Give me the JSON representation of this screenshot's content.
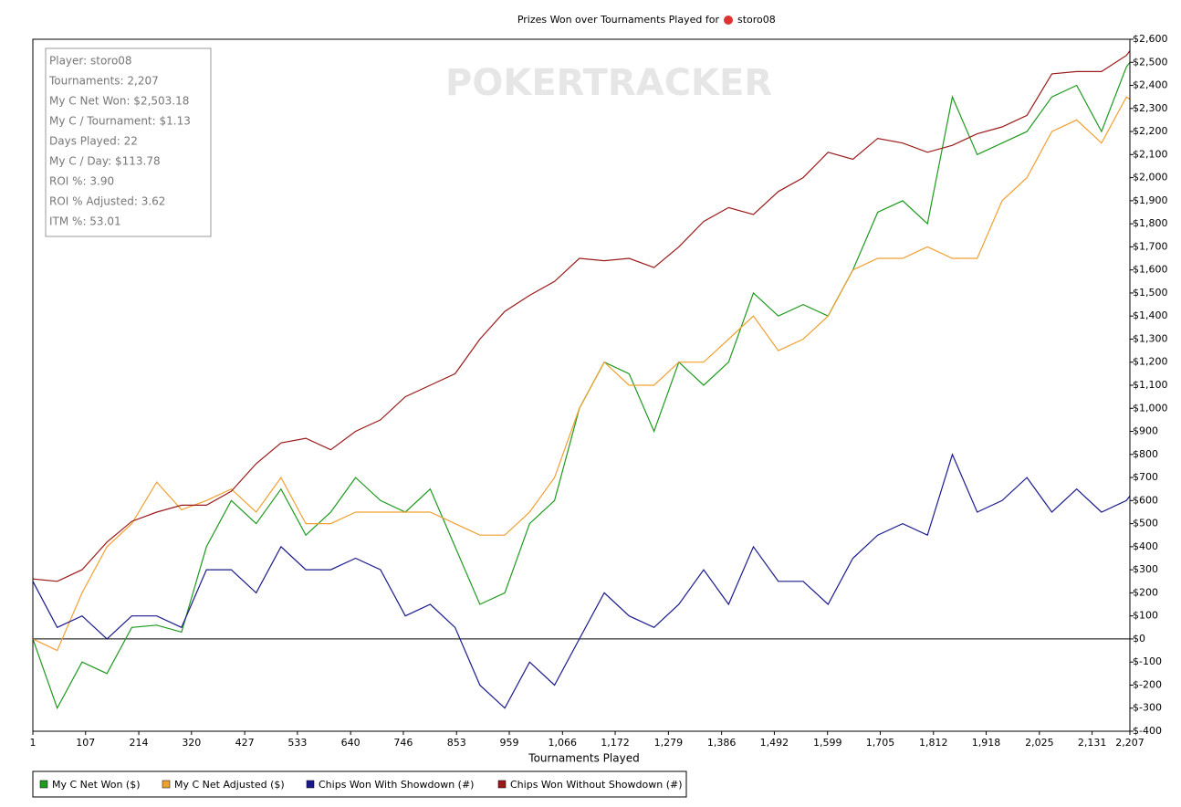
{
  "chart_data": {
    "type": "line",
    "title": "Prizes Won over Tournaments Played for",
    "title_player": "storo08",
    "watermark": "POKERTRACKER",
    "annotations": [
      "Player: storo08",
      "Tournaments: 2,207",
      "My C Net Won: $2,503.18",
      "My C / Tournament: $1.13",
      "Days Played: 22",
      "My C / Day: $113.78",
      "ROI %: 3.90",
      "ROI % Adjusted: 3.62",
      "ITM %: 53.01"
    ],
    "x_label": "Tournaments Played",
    "x": [
      1,
      50,
      100,
      150,
      200,
      250,
      300,
      350,
      400,
      450,
      500,
      550,
      600,
      650,
      700,
      750,
      800,
      850,
      900,
      950,
      1000,
      1050,
      1100,
      1150,
      1200,
      1250,
      1300,
      1350,
      1400,
      1450,
      1500,
      1550,
      1600,
      1650,
      1700,
      1750,
      1800,
      1850,
      1900,
      1950,
      2000,
      2050,
      2100,
      2150,
      2200,
      2207
    ],
    "series": [
      {
        "name": "My C Net Won ($)",
        "color": "#1e9a1e",
        "values": [
          0,
          -300,
          -100,
          -150,
          50,
          60,
          30,
          400,
          600,
          500,
          650,
          450,
          550,
          700,
          600,
          550,
          650,
          400,
          150,
          200,
          500,
          600,
          1000,
          1200,
          1150,
          900,
          1200,
          1100,
          1200,
          1500,
          1400,
          1450,
          1400,
          1600,
          1850,
          1900,
          1800,
          2350,
          2100,
          2150,
          2200,
          2350,
          2400,
          2200,
          2480,
          2500
        ]
      },
      {
        "name": "My C Net Adjusted ($)",
        "color": "#f0a032",
        "values": [
          0,
          -50,
          200,
          400,
          500,
          680,
          560,
          600,
          650,
          550,
          700,
          500,
          500,
          550,
          550,
          550,
          550,
          500,
          450,
          450,
          550,
          700,
          1000,
          1200,
          1100,
          1100,
          1200,
          1200,
          1300,
          1400,
          1250,
          1300,
          1400,
          1600,
          1650,
          1650,
          1700,
          1650,
          1650,
          1900,
          2000,
          2200,
          2250,
          2150,
          2350,
          2340
        ]
      },
      {
        "name": "Chips Won With Showdown (#)",
        "color": "#1a1a8c",
        "values": [
          250,
          50,
          100,
          0,
          100,
          100,
          50,
          300,
          300,
          200,
          400,
          300,
          300,
          350,
          300,
          100,
          150,
          50,
          -200,
          -300,
          -100,
          -200,
          0,
          200,
          100,
          50,
          150,
          300,
          150,
          400,
          250,
          250,
          150,
          350,
          450,
          500,
          450,
          800,
          550,
          600,
          700,
          550,
          650,
          550,
          600,
          620
        ]
      },
      {
        "name": "Chips Won Without Showdown (#)",
        "color": "#9b1a1a",
        "values": [
          260,
          250,
          300,
          420,
          510,
          550,
          580,
          580,
          640,
          760,
          850,
          870,
          820,
          900,
          950,
          1050,
          1100,
          1150,
          1300,
          1420,
          1490,
          1550,
          1650,
          1640,
          1650,
          1610,
          1700,
          1810,
          1870,
          1840,
          1940,
          2000,
          2110,
          2080,
          2170,
          2150,
          2110,
          2140,
          2190,
          2220,
          2270,
          2450,
          2460,
          2460,
          2530,
          2550
        ]
      }
    ],
    "xlim": [
      1,
      2207
    ],
    "xticks": [
      1,
      107,
      214,
      320,
      427,
      533,
      640,
      746,
      853,
      959,
      {
        "value": 1066,
        "label": "1,066"
      },
      {
        "value": 1172,
        "label": "1,172"
      },
      {
        "value": 1279,
        "label": "1,279"
      },
      {
        "value": 1386,
        "label": "1,386"
      },
      {
        "value": 1492,
        "label": "1,492"
      },
      {
        "value": 1599,
        "label": "1,599"
      },
      {
        "value": 1705,
        "label": "1,705"
      },
      {
        "value": 1812,
        "label": "1,812"
      },
      {
        "value": 1918,
        "label": "1,918"
      },
      {
        "value": 2025,
        "label": "2,025"
      },
      {
        "value": 2131,
        "label": "2,131"
      },
      {
        "value": 2207,
        "label": "2,207"
      }
    ],
    "ylim": [
      -400,
      2600
    ],
    "yticks": [
      {
        "value": -400,
        "label": "$-400"
      },
      {
        "value": -300,
        "label": "$-300"
      },
      {
        "value": -200,
        "label": "$-200"
      },
      {
        "value": -100,
        "label": "$-100"
      },
      {
        "value": 0,
        "label": "$0"
      },
      {
        "value": 100,
        "label": "$100"
      },
      {
        "value": 200,
        "label": "$200"
      },
      {
        "value": 300,
        "label": "$300"
      },
      {
        "value": 400,
        "label": "$400"
      },
      {
        "value": 500,
        "label": "$500"
      },
      {
        "value": 600,
        "label": "$600"
      },
      {
        "value": 700,
        "label": "$700"
      },
      {
        "value": 800,
        "label": "$800"
      },
      {
        "value": 900,
        "label": "$900"
      },
      {
        "value": 1000,
        "label": "$1,000"
      },
      {
        "value": 1100,
        "label": "$1,100"
      },
      {
        "value": 1200,
        "label": "$1,200"
      },
      {
        "value": 1300,
        "label": "$1,300"
      },
      {
        "value": 1400,
        "label": "$1,400"
      },
      {
        "value": 1500,
        "label": "$1,500"
      },
      {
        "value": 1600,
        "label": "$1,600"
      },
      {
        "value": 1700,
        "label": "$1,700"
      },
      {
        "value": 1800,
        "label": "$1,800"
      },
      {
        "value": 1900,
        "label": "$1,900"
      },
      {
        "value": 2000,
        "label": "$2,000"
      },
      {
        "value": 2100,
        "label": "$2,100"
      },
      {
        "value": 2200,
        "label": "$2,200"
      },
      {
        "value": 2300,
        "label": "$2,300"
      },
      {
        "value": 2400,
        "label": "$2,400"
      },
      {
        "value": 2500,
        "label": "$2,500"
      },
      {
        "value": 2600,
        "label": "$2,600"
      }
    ]
  }
}
